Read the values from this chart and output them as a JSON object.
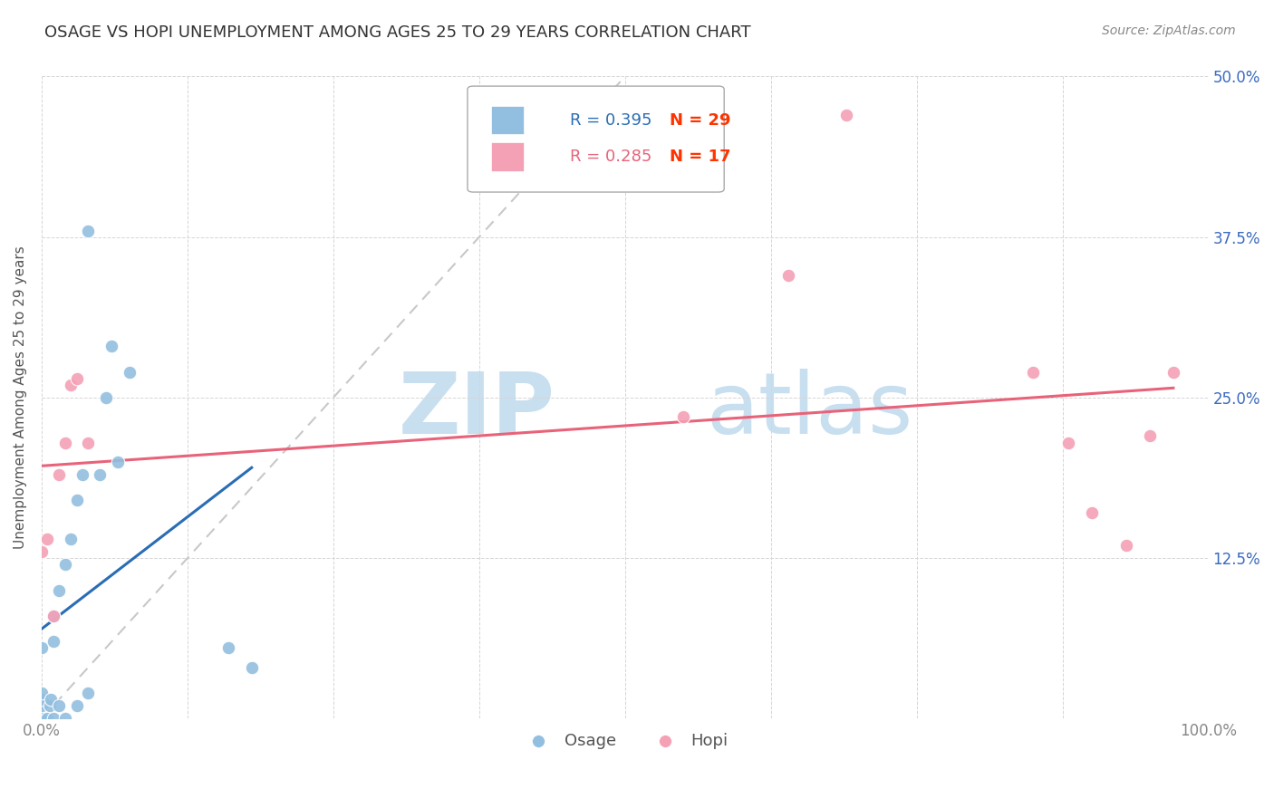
{
  "title": "OSAGE VS HOPI UNEMPLOYMENT AMONG AGES 25 TO 29 YEARS CORRELATION CHART",
  "source": "Source: ZipAtlas.com",
  "ylabel": "Unemployment Among Ages 25 to 29 years",
  "xlim": [
    0.0,
    1.0
  ],
  "ylim": [
    0.0,
    0.5
  ],
  "xticks": [
    0.0,
    0.125,
    0.25,
    0.375,
    0.5,
    0.625,
    0.75,
    0.875,
    1.0
  ],
  "yticks": [
    0.0,
    0.125,
    0.25,
    0.375,
    0.5
  ],
  "xtick_labels": [
    "0.0%",
    "",
    "",
    "",
    "",
    "",
    "",
    "",
    "100.0%"
  ],
  "ytick_labels": [
    "",
    "12.5%",
    "25.0%",
    "37.5%",
    "50.0%"
  ],
  "osage_color": "#92bfdf",
  "hopi_color": "#f4a0b5",
  "osage_line_color": "#2a6db5",
  "hopi_line_color": "#e8637a",
  "diagonal_color": "#c8c8c8",
  "osage_R": 0.395,
  "osage_N": 29,
  "hopi_R": 0.285,
  "hopi_N": 17,
  "legend_R_osage_color": "#2a6db5",
  "legend_R_hopi_color": "#e8637a",
  "legend_N_color": "#ff3300",
  "background_color": "#ffffff",
  "watermark_zip_color": "#c8dff0",
  "watermark_atlas_color": "#c8dff0",
  "title_fontsize": 13,
  "axis_label_fontsize": 11,
  "tick_fontsize": 12,
  "osage_x": [
    0.0,
    0.0,
    0.0,
    0.0,
    0.0,
    0.0,
    0.005,
    0.007,
    0.008,
    0.01,
    0.01,
    0.01,
    0.015,
    0.015,
    0.02,
    0.02,
    0.025,
    0.03,
    0.03,
    0.035,
    0.04,
    0.04,
    0.05,
    0.055,
    0.06,
    0.065,
    0.075,
    0.16,
    0.18
  ],
  "osage_y": [
    0.0,
    0.0,
    0.01,
    0.015,
    0.02,
    0.055,
    0.0,
    0.01,
    0.015,
    0.0,
    0.06,
    0.08,
    0.01,
    0.1,
    0.0,
    0.12,
    0.14,
    0.01,
    0.17,
    0.19,
    0.02,
    0.38,
    0.19,
    0.25,
    0.29,
    0.2,
    0.27,
    0.055,
    0.04
  ],
  "hopi_x": [
    0.0,
    0.005,
    0.01,
    0.015,
    0.02,
    0.025,
    0.03,
    0.04,
    0.55,
    0.64,
    0.69,
    0.85,
    0.88,
    0.9,
    0.93,
    0.95,
    0.97
  ],
  "hopi_y": [
    0.13,
    0.14,
    0.08,
    0.19,
    0.215,
    0.26,
    0.265,
    0.215,
    0.235,
    0.345,
    0.47,
    0.27,
    0.215,
    0.16,
    0.135,
    0.22,
    0.27
  ]
}
